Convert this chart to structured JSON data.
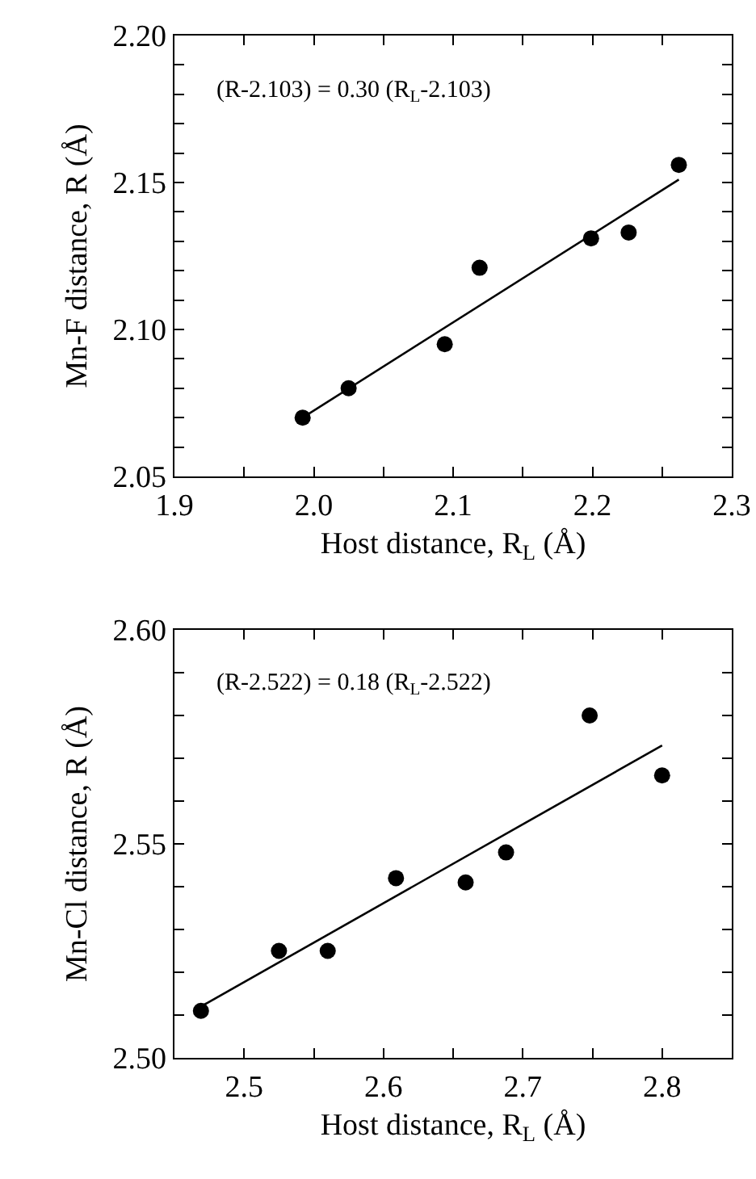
{
  "chart_data": [
    {
      "type": "scatter",
      "xlabel": "Host distance, R$_{L}$ (Å)",
      "ylabel": "Mn-F distance, R (Å)",
      "annotations": [
        "(R-2.103) = 0.30 (R$_{L}$-2.103)"
      ],
      "xlim": [
        1.9,
        2.3
      ],
      "xticks": [
        1.9,
        {
          "value": 1.95,
          "label": null
        },
        "2.0",
        {
          "value": 2.05,
          "label": null
        },
        2.1,
        {
          "value": 2.15,
          "label": null
        },
        2.2,
        {
          "value": 2.25,
          "label": null
        },
        2.3
      ],
      "ylim": [
        2.05,
        2.2
      ],
      "yticks": [
        2.05,
        {
          "value": 2.06,
          "label": null
        },
        {
          "value": 2.07,
          "label": null
        },
        {
          "value": 2.08,
          "label": null
        },
        {
          "value": 2.09,
          "label": null
        },
        {
          "value": 2.1,
          "label": "2.10"
        },
        {
          "value": 2.11,
          "label": null
        },
        {
          "value": 2.12,
          "label": null
        },
        {
          "value": 2.13,
          "label": null
        },
        {
          "value": 2.14,
          "label": null
        },
        2.15,
        {
          "value": 2.16,
          "label": null
        },
        {
          "value": 2.17,
          "label": null
        },
        {
          "value": 2.18,
          "label": null
        },
        {
          "value": 2.19,
          "label": null
        },
        {
          "value": 2.2,
          "label": "2.20"
        }
      ],
      "series": [
        {
          "marker": "circle",
          "color": "#000000",
          "x": [
            1.992,
            2.025,
            2.094,
            2.119,
            2.199,
            2.226,
            2.262
          ],
          "values": [
            2.07,
            2.08,
            2.095,
            2.121,
            2.131,
            2.133,
            2.156
          ]
        },
        {
          "type": "line",
          "marker": "none",
          "color": "#000000",
          "x": [
            1.992,
            2.262
          ],
          "values": [
            2.07,
            2.151
          ]
        }
      ]
    },
    {
      "type": "scatter",
      "xlabel": "Host distance, R$_{L}$ (Å)",
      "ylabel": "Mn-Cl distance, R (Å)",
      "annotations": [
        "(R-2.522) = 0.18 (R$_{L}$-2.522)"
      ],
      "xlim": [
        2.45,
        2.85
      ],
      "xticks": [
        2.5,
        {
          "value": 2.55,
          "label": null
        },
        2.6,
        {
          "value": 2.65,
          "label": null
        },
        2.7,
        {
          "value": 2.75,
          "label": null
        },
        2.8
      ],
      "ylim": [
        2.5,
        2.6
      ],
      "yticks": [
        {
          "value": 2.5,
          "label": "2.50"
        },
        {
          "value": 2.51,
          "label": null
        },
        {
          "value": 2.52,
          "label": null
        },
        {
          "value": 2.53,
          "label": null
        },
        {
          "value": 2.54,
          "label": null
        },
        2.55,
        {
          "value": 2.56,
          "label": null
        },
        {
          "value": 2.57,
          "label": null
        },
        {
          "value": 2.58,
          "label": null
        },
        {
          "value": 2.59,
          "label": null
        },
        {
          "value": 2.6,
          "label": "2.60"
        }
      ],
      "series": [
        {
          "marker": "circle",
          "color": "#000000",
          "x": [
            2.469,
            2.525,
            2.56,
            2.609,
            2.659,
            2.688,
            2.748,
            2.8
          ],
          "values": [
            2.511,
            2.525,
            2.525,
            2.542,
            2.541,
            2.548,
            2.58,
            2.566
          ]
        },
        {
          "type": "line",
          "marker": "none",
          "color": "#000000",
          "x": [
            2.469,
            2.8
          ],
          "values": [
            2.512,
            2.573
          ]
        }
      ]
    }
  ]
}
